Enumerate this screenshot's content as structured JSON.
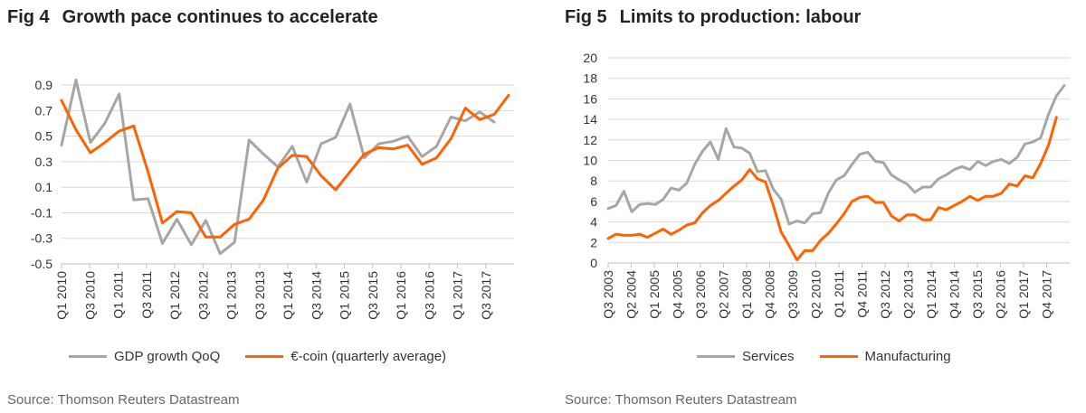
{
  "chart_data": [
    {
      "type": "line",
      "fig_label": "Fig 4",
      "title": "Growth pace continues to accelerate",
      "source": "Source: Thomson Reuters Datastream",
      "ylim": [
        -0.5,
        1.0
      ],
      "yticks": [
        "0.9",
        "0.7",
        "0.5",
        "0.3",
        "0.1",
        "-0.1",
        "-0.3",
        "-0.5"
      ],
      "ytick_values": [
        0.9,
        0.7,
        0.5,
        0.3,
        0.1,
        -0.1,
        -0.3,
        -0.5
      ],
      "xtick_labels": [
        "Q1 2010",
        "Q3 2010",
        "Q1 2011",
        "Q3 2011",
        "Q1 2012",
        "Q3 2012",
        "Q1 2013",
        "Q3 2013",
        "Q1 2014",
        "Q3 2014",
        "Q1 2015",
        "Q3 2015",
        "Q1 2016",
        "Q3 2016",
        "Q1 2017",
        "Q3 2017"
      ],
      "grid": true,
      "legend_position": "bottom",
      "series": [
        {
          "name": "GDP growth QoQ",
          "color": "#a6a6a6",
          "values": [
            0.43,
            0.94,
            0.45,
            0.6,
            0.83,
            0.0,
            0.01,
            -0.34,
            -0.15,
            -0.35,
            -0.16,
            -0.42,
            -0.33,
            0.47,
            0.36,
            0.26,
            0.42,
            0.14,
            0.44,
            0.49,
            0.75,
            0.33,
            0.44,
            0.46,
            0.5,
            0.34,
            0.42,
            0.65,
            0.62,
            0.69,
            0.61
          ]
        },
        {
          "name": "€-coin (quarterly average)",
          "color": "#ff6200",
          "values": [
            0.78,
            0.55,
            0.37,
            0.45,
            0.54,
            0.58,
            0.22,
            -0.18,
            -0.09,
            -0.1,
            -0.29,
            -0.29,
            -0.19,
            -0.15,
            0.0,
            0.25,
            0.35,
            0.34,
            0.19,
            0.08,
            0.22,
            0.36,
            0.41,
            0.4,
            0.43,
            0.28,
            0.33,
            0.48,
            0.72,
            0.63,
            0.67,
            0.82
          ]
        }
      ]
    },
    {
      "type": "line",
      "fig_label": "Fig 5",
      "title": "Limits to production: labour",
      "source": "Source: Thomson Reuters Datastream",
      "ylim": [
        0,
        20
      ],
      "yticks": [
        "20",
        "18",
        "16",
        "14",
        "12",
        "10",
        "8",
        "6",
        "4",
        "2",
        "0"
      ],
      "ytick_values": [
        20,
        18,
        16,
        14,
        12,
        10,
        8,
        6,
        4,
        2,
        0
      ],
      "xtick_labels": [
        "Q3 2003",
        "Q2 2004",
        "Q1 2005",
        "Q4 2005",
        "Q3 2006",
        "Q2 2007",
        "Q1 2008",
        "Q4 2008",
        "Q3 2009",
        "Q2 2010",
        "Q1 2011",
        "Q4 2011",
        "Q3 2012",
        "Q2 2013",
        "Q1 2014",
        "Q4 2014",
        "Q3 2015",
        "Q2 2016",
        "Q1 2017",
        "Q4 2017"
      ],
      "grid": true,
      "legend_position": "bottom",
      "series": [
        {
          "name": "Services",
          "color": "#a6a6a6",
          "values": [
            5.3,
            5.6,
            7.0,
            5.0,
            5.7,
            5.8,
            5.7,
            6.2,
            7.3,
            7.1,
            7.8,
            9.6,
            10.9,
            11.8,
            10.1,
            13.1,
            11.3,
            11.2,
            10.7,
            8.9,
            9.0,
            7.2,
            6.2,
            3.8,
            4.1,
            3.9,
            4.8,
            4.9,
            6.8,
            8.1,
            8.5,
            9.6,
            10.6,
            10.8,
            9.9,
            9.8,
            8.6,
            8.1,
            7.7,
            6.9,
            7.4,
            7.4,
            8.2,
            8.6,
            9.1,
            9.4,
            9.1,
            9.9,
            9.5,
            9.9,
            10.1,
            9.7,
            10.3,
            11.6,
            11.8,
            12.2,
            14.5,
            16.3,
            17.3
          ]
        },
        {
          "name": "Manufacturing",
          "color": "#ff6200",
          "values": [
            2.4,
            2.8,
            2.7,
            2.7,
            2.8,
            2.5,
            2.9,
            3.3,
            2.8,
            3.2,
            3.7,
            3.9,
            4.9,
            5.6,
            6.1,
            6.8,
            7.5,
            8.1,
            9.1,
            8.2,
            7.9,
            5.6,
            3.0,
            1.7,
            0.3,
            1.2,
            1.2,
            2.2,
            2.9,
            3.8,
            4.8,
            6.0,
            6.4,
            6.5,
            5.9,
            5.9,
            4.6,
            4.1,
            4.7,
            4.7,
            4.2,
            4.2,
            5.4,
            5.2,
            5.6,
            6.0,
            6.5,
            6.1,
            6.5,
            6.5,
            6.8,
            7.7,
            7.5,
            8.5,
            8.3,
            9.7,
            11.5,
            14.2
          ]
        }
      ]
    }
  ]
}
